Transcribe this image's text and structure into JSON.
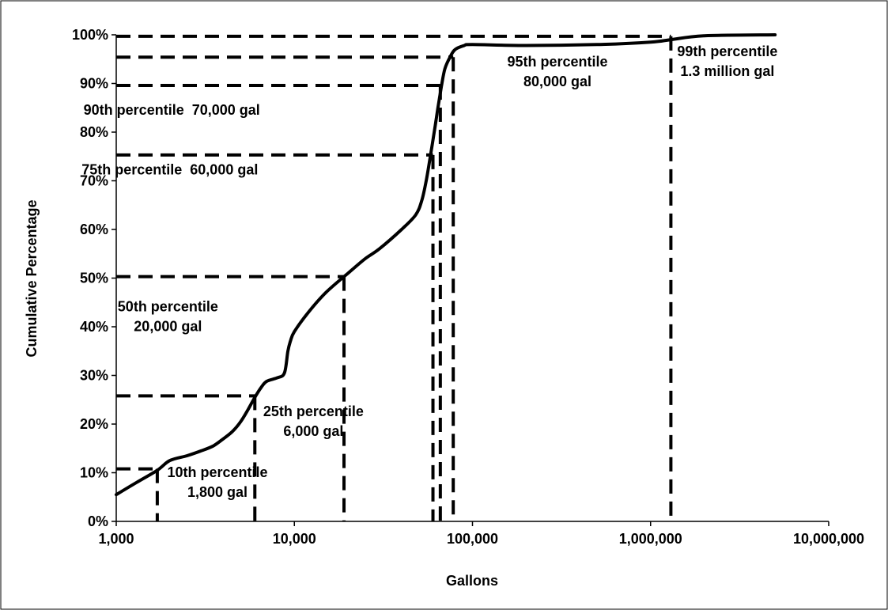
{
  "chart_data": {
    "type": "line",
    "title": "",
    "xlabel": "Gallons",
    "ylabel": "Cumulative Percentage",
    "x_scale": "log",
    "xlim": [
      1000,
      10000000
    ],
    "ylim": [
      0,
      100
    ],
    "grid": false,
    "x_ticks": [
      {
        "value": 1000,
        "label": "1,000"
      },
      {
        "value": 10000,
        "label": "10,000"
      },
      {
        "value": 100000,
        "label": "100,000"
      },
      {
        "value": 1000000,
        "label": "1,000,000"
      },
      {
        "value": 10000000,
        "label": "10,000,000"
      }
    ],
    "y_ticks": [
      {
        "value": 0,
        "label": "0%"
      },
      {
        "value": 10,
        "label": "10%"
      },
      {
        "value": 20,
        "label": "20%"
      },
      {
        "value": 30,
        "label": "30%"
      },
      {
        "value": 40,
        "label": "40%"
      },
      {
        "value": 50,
        "label": "50%"
      },
      {
        "value": 60,
        "label": "60%"
      },
      {
        "value": 70,
        "label": "70%"
      },
      {
        "value": 80,
        "label": "80%"
      },
      {
        "value": 90,
        "label": "90%"
      },
      {
        "value": 100,
        "label": "100%"
      }
    ],
    "series": [
      {
        "x": [
          1000,
          1300,
          1700,
          2000,
          2500,
          3000,
          3500,
          4000,
          4500,
          5000,
          5500,
          6000,
          6500,
          7000,
          8000,
          8800,
          9200,
          9500,
          10000,
          12000,
          15000,
          20000,
          25000,
          30000,
          40000,
          48000,
          52000,
          55000,
          58000,
          61000,
          64000,
          67000,
          70000,
          75000,
          80000,
          90000,
          100000,
          200000,
          500000,
          1000000,
          1300000,
          2000000,
          5000000
        ],
        "y": [
          5.5,
          8,
          10.5,
          12.5,
          13.5,
          14.5,
          15.5,
          17,
          18.5,
          20.5,
          23,
          25.5,
          27.5,
          28.8,
          29.5,
          30.5,
          35,
          37,
          39,
          43,
          47,
          51,
          54,
          56,
          60,
          63,
          66,
          70,
          75,
          80,
          85,
          89.5,
          93,
          95.5,
          97,
          97.8,
          98,
          97.8,
          98,
          98.5,
          99,
          99.8,
          100
        ]
      }
    ],
    "percentile_markers": [
      {
        "x": 1700,
        "y": 10.8
      },
      {
        "x": 6000,
        "y": 25.8
      },
      {
        "x": 19000,
        "y": 50.3
      },
      {
        "x": 60000,
        "y": 75.3
      },
      {
        "x": 66000,
        "y": 89.6
      },
      {
        "x": 78000,
        "y": 95.4
      },
      {
        "x": 1300000,
        "y": 99.7
      }
    ],
    "annotations": [
      {
        "lines": [
          "10th percentile",
          "1,800 gal"
        ],
        "x": 3700,
        "y": 9.1
      },
      {
        "lines": [
          "25th percentile",
          "6,000 gal"
        ],
        "x": 12800,
        "y": 21.6
      },
      {
        "lines": [
          "50th percentile",
          "20,000 gal"
        ],
        "x": 1950,
        "y": 43.2
      },
      {
        "lines": [
          "75th percentile  60,000 gal"
        ],
        "x": 2000,
        "y": 71.3
      },
      {
        "lines": [
          "90th percentile  70,000 gal"
        ],
        "x": 2050,
        "y": 83.6
      },
      {
        "lines": [
          "95th percentile",
          "80,000 gal"
        ],
        "x": 300000,
        "y": 93.5
      },
      {
        "lines": [
          "99th percentile",
          "1.3 million gal"
        ],
        "x": 2700000,
        "y": 95.6
      }
    ]
  }
}
